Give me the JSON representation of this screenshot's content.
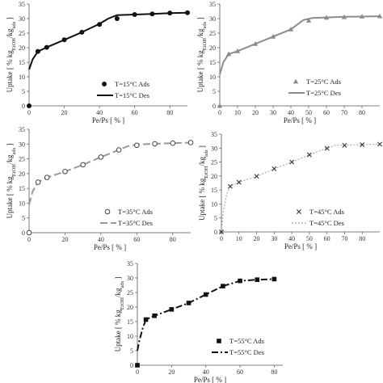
{
  "chart_data": [
    {
      "type": "scatter",
      "panel": "T=15°C",
      "xlabel": "Pe/Ps [ % ]",
      "ylabel": "Uptake [ % kg_EtOH/kg_ads ]",
      "xlim": [
        0,
        90
      ],
      "ylim": [
        0,
        35
      ],
      "xticks": [
        0,
        20,
        40,
        60,
        80
      ],
      "yticks": [
        0,
        5,
        10,
        15,
        20,
        25,
        30,
        35
      ],
      "legend_position": "bottom-right",
      "colors": {
        "ads": "#111111",
        "des": "#111111"
      },
      "marker": "circle",
      "line_style": "solid",
      "series": [
        {
          "name": "T=15°C Ads",
          "x": [
            0,
            5,
            10,
            20,
            30,
            40,
            50,
            60,
            70,
            80,
            90
          ],
          "y": [
            0,
            18.7,
            20.1,
            22.7,
            25.3,
            28.0,
            30.0,
            31.4,
            31.6,
            31.9,
            32.0
          ]
        },
        {
          "name": "T=15°C Des",
          "x": [
            0,
            2,
            5,
            10,
            20,
            30,
            40,
            45,
            50,
            60,
            70,
            80,
            90
          ],
          "y": [
            12.5,
            16.0,
            18.7,
            20.1,
            22.7,
            25.3,
            28.2,
            30.0,
            31.2,
            31.4,
            31.6,
            31.9,
            32.0
          ]
        }
      ]
    },
    {
      "type": "scatter",
      "panel": "T=25°C",
      "xlabel": "Pe/Ps [ % ]",
      "ylabel": "Uptake [ % kg_EtOH/kg_ads ]",
      "xlim": [
        0,
        90
      ],
      "ylim": [
        0,
        35
      ],
      "xticks": [
        0,
        10,
        20,
        30,
        40,
        50,
        60,
        70,
        80
      ],
      "yticks": [
        0,
        5,
        10,
        15,
        20,
        25,
        30,
        35
      ],
      "legend_position": "bottom-right",
      "colors": {
        "ads": "#8c8c8c",
        "des": "#8c8c8c"
      },
      "marker": "triangle",
      "line_style": "solid",
      "series": [
        {
          "name": "T=25°C Ads",
          "x": [
            0,
            5,
            10,
            20,
            30,
            40,
            50,
            60,
            70,
            80,
            90
          ],
          "y": [
            0,
            17.8,
            18.8,
            21.3,
            23.8,
            26.3,
            29.3,
            30.3,
            30.5,
            30.7,
            30.8
          ]
        },
        {
          "name": "T=25°C Des",
          "x": [
            0,
            2,
            5,
            10,
            20,
            30,
            40,
            47,
            52,
            60,
            70,
            80,
            90
          ],
          "y": [
            10.8,
            15.0,
            17.8,
            18.8,
            21.3,
            23.8,
            26.3,
            29.5,
            30.2,
            30.4,
            30.6,
            30.7,
            30.8
          ]
        }
      ]
    },
    {
      "type": "scatter",
      "panel": "T=35°C",
      "xlabel": "Pe/Ps [ % ]",
      "ylabel": "Uptake [ % kg_EtOH/kg_ads ]",
      "xlim": [
        0,
        90
      ],
      "ylim": [
        0,
        35
      ],
      "xticks": [
        0,
        20,
        40,
        60,
        80
      ],
      "yticks": [
        0,
        5,
        10,
        15,
        20,
        25,
        30,
        35
      ],
      "legend_position": "bottom-right",
      "colors": {
        "ads": "#444444",
        "des": "#999999"
      },
      "marker": "open-circle",
      "line_style": "long-dash",
      "series": [
        {
          "name": "T=35°C Ads",
          "x": [
            0,
            5,
            10,
            20,
            30,
            40,
            50,
            60,
            70,
            80,
            90
          ],
          "y": [
            0,
            17.1,
            18.7,
            20.7,
            23.0,
            25.6,
            28.0,
            29.6,
            30.1,
            30.3,
            30.5
          ]
        },
        {
          "name": "T=35°C Des",
          "x": [
            0,
            2,
            5,
            10,
            20,
            30,
            40,
            50,
            55,
            60,
            70,
            80,
            90
          ],
          "y": [
            9.5,
            14.0,
            17.1,
            18.7,
            20.7,
            23.0,
            25.6,
            28.0,
            29.3,
            29.8,
            30.1,
            30.3,
            30.5
          ]
        }
      ]
    },
    {
      "type": "scatter",
      "panel": "T=45°C",
      "xlabel": "Pe/Ps [ % ]",
      "ylabel": "Uptake [ % kg_EtOH/kg_ads ]",
      "xlim": [
        0,
        90
      ],
      "ylim": [
        0,
        35
      ],
      "xticks": [
        0,
        10,
        20,
        30,
        40,
        50,
        60,
        70,
        80
      ],
      "yticks": [
        0,
        5,
        10,
        15,
        20,
        25,
        30,
        35
      ],
      "legend_position": "bottom-right",
      "colors": {
        "ads": "#333333",
        "des": "#aaaaaa"
      },
      "marker": "cross",
      "line_style": "dotted",
      "series": [
        {
          "name": "T=45°C Ads",
          "x": [
            0,
            5,
            10,
            20,
            30,
            40,
            50,
            60,
            70,
            80,
            90
          ],
          "y": [
            0,
            16.3,
            17.8,
            19.9,
            22.6,
            25.0,
            27.6,
            29.9,
            31.0,
            31.2,
            31.4
          ]
        },
        {
          "name": "T=45°C Des",
          "x": [
            0,
            1,
            3,
            5,
            10,
            20,
            30,
            40,
            50,
            60,
            65,
            70,
            80,
            90
          ],
          "y": [
            0,
            7.0,
            13.5,
            16.3,
            17.8,
            19.9,
            22.6,
            25.0,
            27.6,
            30.0,
            31.0,
            31.1,
            31.2,
            31.4
          ]
        }
      ]
    },
    {
      "type": "scatter",
      "panel": "T=55°C",
      "xlabel": "Pe/Ps [ % ]",
      "ylabel": "Uptake [ % kg_EtOH/kg_ads ]",
      "xlim": [
        0,
        85
      ],
      "ylim": [
        0,
        35
      ],
      "xticks": [
        0,
        20,
        40,
        60,
        80
      ],
      "yticks": [
        0,
        5,
        10,
        15,
        20,
        25,
        30,
        35
      ],
      "legend_position": "bottom-right",
      "colors": {
        "ads": "#111111",
        "des": "#111111"
      },
      "marker": "square",
      "line_style": "dash-dot",
      "series": [
        {
          "name": "T=55°C Ads",
          "x": [
            0,
            5,
            10,
            20,
            30,
            40,
            50,
            60,
            70,
            80
          ],
          "y": [
            0,
            15.7,
            17.0,
            19.2,
            21.4,
            24.3,
            27.2,
            29.0,
            29.4,
            29.6
          ]
        },
        {
          "name": "T=55°C Des",
          "x": [
            0,
            1,
            3,
            5,
            10,
            20,
            30,
            40,
            50,
            60,
            70,
            80
          ],
          "y": [
            5.0,
            8.0,
            12.5,
            15.7,
            17.0,
            19.2,
            21.4,
            24.3,
            27.2,
            29.0,
            29.4,
            29.6
          ]
        }
      ]
    }
  ]
}
